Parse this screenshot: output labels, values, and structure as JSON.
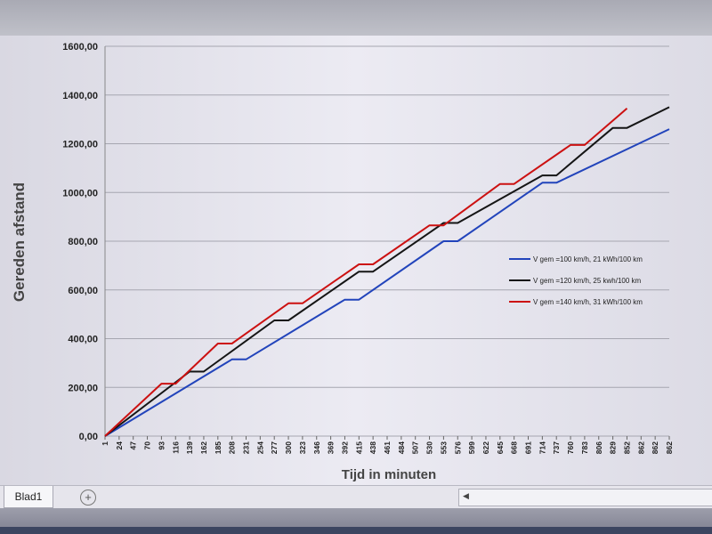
{
  "chart_data": {
    "type": "line",
    "title": "",
    "xlabel": "Tijd in minuten",
    "ylabel": "Gereden afstand",
    "ylim": [
      0,
      1600
    ],
    "yticks": [
      "0,00",
      "200,00",
      "400,00",
      "600,00",
      "800,00",
      "1000,00",
      "1200,00",
      "1400,00",
      "1600,00"
    ],
    "ytick_values": [
      0,
      200,
      400,
      600,
      800,
      1000,
      1200,
      1400,
      1600
    ],
    "x": [
      "1",
      "24",
      "47",
      "70",
      "93",
      "116",
      "139",
      "162",
      "185",
      "208",
      "231",
      "254",
      "277",
      "300",
      "323",
      "346",
      "369",
      "392",
      "415",
      "438",
      "461",
      "484",
      "507",
      "530",
      "553",
      "576",
      "599",
      "622",
      "645",
      "668",
      "691",
      "714",
      "737",
      "760",
      "783",
      "806",
      "829",
      "852",
      "862",
      "862",
      "862"
    ],
    "grid": "horizontal",
    "legend_position": "right",
    "series": [
      {
        "name": "V gem =100 km/h, 21 kWh/100 km",
        "color": "#2244bb",
        "points": [
          [
            0,
            0
          ],
          [
            9,
            315
          ],
          [
            10,
            315
          ],
          [
            17,
            560
          ],
          [
            18,
            560
          ],
          [
            24,
            800
          ],
          [
            25,
            800
          ],
          [
            31,
            1040
          ],
          [
            32,
            1040
          ],
          [
            40,
            1260
          ]
        ]
      },
      {
        "name": "V gem =120 km/h, 25 kwh/100 km",
        "color": "#151515",
        "points": [
          [
            0,
            0
          ],
          [
            6,
            265
          ],
          [
            7,
            265
          ],
          [
            12,
            475
          ],
          [
            13,
            475
          ],
          [
            18,
            675
          ],
          [
            19,
            675
          ],
          [
            24,
            875
          ],
          [
            25,
            875
          ],
          [
            31,
            1070
          ],
          [
            32,
            1070
          ],
          [
            36,
            1265
          ],
          [
            37,
            1265
          ],
          [
            40,
            1350
          ]
        ]
      },
      {
        "name": "V gem =140 km/h, 31 kWh/100 km",
        "color": "#cc1111",
        "points": [
          [
            0,
            0
          ],
          [
            4,
            215
          ],
          [
            5,
            215
          ],
          [
            8,
            380
          ],
          [
            9,
            380
          ],
          [
            13,
            545
          ],
          [
            14,
            545
          ],
          [
            18,
            705
          ],
          [
            19,
            705
          ],
          [
            23,
            865
          ],
          [
            24,
            865
          ],
          [
            28,
            1035
          ],
          [
            29,
            1035
          ],
          [
            33,
            1195
          ],
          [
            34,
            1195
          ],
          [
            37,
            1345
          ]
        ]
      }
    ]
  },
  "sheet_tab": "Blad1",
  "add_sheet_icon": "plus-circle-icon",
  "scroll_icon": "scroll-left-icon"
}
